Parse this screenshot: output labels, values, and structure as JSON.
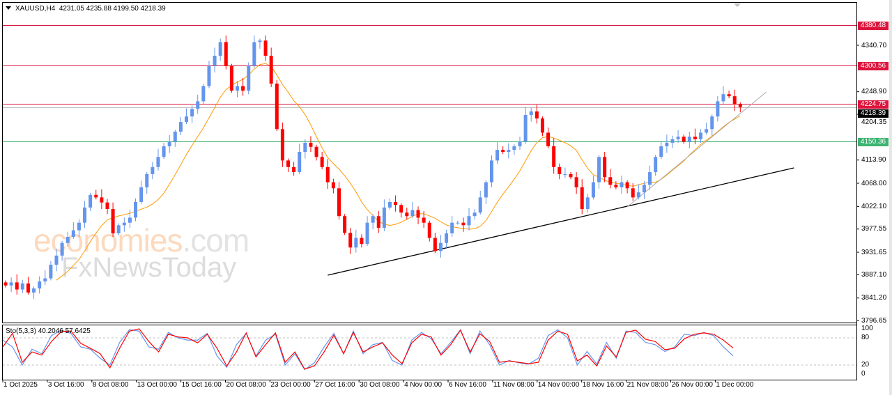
{
  "header": {
    "symbol": "XAUUSD,H4",
    "ohlc": "4231.05 4235.88 4199.50 4218.39"
  },
  "watermark": {
    "brand": "economies",
    "domain": ".com",
    "sub": "FxNewsToday"
  },
  "colors": {
    "bull": "#6495ed",
    "bear": "#ff0000",
    "ma": "#ff9900",
    "resistance": "#dc143c",
    "support": "#3cb371",
    "bid": "#c0c0c0",
    "trendline": "#000000",
    "sto_main": "#6495ed",
    "sto_signal": "#ff0000"
  },
  "chart_data": [
    {
      "type": "candlestick",
      "symbol": "XAUUSD",
      "timeframe": "H4",
      "ylim": [
        3796.65,
        4380.48
      ],
      "y_ticks": [
        "4340.70",
        "4248.90",
        "4204.35",
        "4113.90",
        "4068.00",
        "4022.10",
        "3977.55",
        "3931.65",
        "3887.10",
        "3841.20",
        "3796.65"
      ],
      "x_ticks": [
        "1 Oct 2025",
        "3 Oct 16:00",
        "8 Oct 08:00",
        "13 Oct 00:00",
        "15 Oct 16:00",
        "20 Oct 08:00",
        "23 Oct 00:00",
        "27 Oct 16:00",
        "30 Oct 08:00",
        "4 Nov 00:00",
        "6 Nov 16:00",
        "11 Nov 08:00",
        "14 Nov 00:00",
        "18 Nov 16:00",
        "21 Nov 08:00",
        "26 Nov 00:00",
        "1 Dec 00:00"
      ],
      "closes": [
        3866,
        3872,
        3858,
        3870,
        3852,
        3860,
        3874,
        3880,
        3907,
        3925,
        3950,
        3962,
        3975,
        3990,
        4020,
        4045,
        4040,
        4030,
        4017,
        3969,
        3985,
        3990,
        4000,
        4031,
        4060,
        4086,
        4100,
        4120,
        4141,
        4150,
        4170,
        4189,
        4200,
        4215,
        4230,
        4260,
        4300,
        4320,
        4347,
        4300,
        4251,
        4260,
        4251,
        4300,
        4347,
        4350,
        4320,
        4265,
        4175,
        4113,
        4100,
        4090,
        4130,
        4148,
        4140,
        4120,
        4100,
        4070,
        4058,
        4003,
        3970,
        3941,
        3960,
        3948,
        3990,
        4003,
        3980,
        4020,
        4031,
        4025,
        4010,
        4003,
        4015,
        4000,
        3990,
        3960,
        3934,
        3950,
        3969,
        3990,
        3990,
        3985,
        4003,
        4010,
        4040,
        4070,
        4113,
        4134,
        4130,
        4134,
        4141,
        4150,
        4203,
        4210,
        4196,
        4168,
        4141,
        4100,
        4086,
        4086,
        4080,
        4060,
        4017,
        4040,
        4070,
        4120,
        4080,
        4065,
        4060,
        4070,
        4058,
        4040,
        4050,
        4065,
        4090,
        4120,
        4141,
        4148,
        4155,
        4160,
        4150,
        4160,
        4155,
        4168,
        4175,
        4200,
        4230,
        4244,
        4240,
        4224,
        4218.39
      ],
      "horizontal_levels": [
        {
          "price": "4380.48",
          "kind": "resistance"
        },
        {
          "price": "4300.56",
          "kind": "resistance"
        },
        {
          "price": "4224.75",
          "kind": "resistance"
        },
        {
          "price": "4218.39",
          "kind": "bid"
        },
        {
          "price": "4150.36",
          "kind": "support"
        }
      ],
      "trendlines": [
        {
          "kind": "trendline",
          "from": [
            57,
            3886.3
          ],
          "to": [
            139.5,
            4098.4
          ]
        },
        {
          "kind": "bid",
          "from": [
            110,
            4021.2
          ],
          "to": [
            134.6,
            4248.4
          ]
        }
      ],
      "moving_average": true
    },
    {
      "type": "line",
      "indicator": "Sto(5,3,3)",
      "label": "Sto(5,3,3) 40.2046 57.6425",
      "ylim": [
        0,
        100
      ],
      "y_ticks": [
        "100",
        "80",
        "20",
        "0"
      ],
      "levels": [
        80,
        20
      ],
      "series": [
        {
          "name": "Main",
          "values": [
            75,
            60,
            20,
            55,
            45,
            85,
            97,
            90,
            60,
            55,
            35,
            20,
            70,
            98,
            95,
            60,
            55,
            92,
            80,
            75,
            75,
            90,
            40,
            15,
            65,
            90,
            40,
            75,
            88,
            20,
            45,
            10,
            25,
            60,
            90,
            45,
            95,
            45,
            65,
            70,
            30,
            20,
            75,
            92,
            78,
            45,
            70,
            98,
            45,
            95,
            65,
            20,
            30,
            25,
            22,
            35,
            85,
            98,
            80,
            20,
            50,
            22,
            70,
            35,
            95,
            92,
            70,
            65,
            50,
            60,
            88,
            85,
            92,
            85,
            60,
            40.2046
          ]
        },
        {
          "name": "Signal",
          "values": [
            60,
            90,
            26,
            49,
            42,
            72,
            94,
            95,
            68,
            57,
            45,
            14,
            57,
            95,
            100,
            72,
            49,
            88,
            82,
            80,
            69,
            88,
            57,
            18,
            49,
            91,
            38,
            65,
            91,
            26,
            49,
            11,
            18,
            49,
            86,
            45,
            92,
            49,
            60,
            69,
            42,
            23,
            69,
            88,
            82,
            42,
            65,
            97,
            49,
            89,
            72,
            26,
            29,
            26,
            23,
            26,
            75,
            95,
            88,
            29,
            42,
            18,
            62,
            38,
            92,
            97,
            77,
            72,
            54,
            57,
            78,
            88,
            91,
            88,
            75,
            57.6425
          ]
        }
      ]
    }
  ]
}
